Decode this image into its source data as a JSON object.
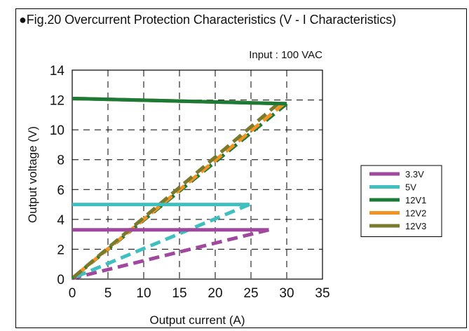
{
  "figure": {
    "title": "●Fig.20 Overcurrent Protection Characteristics (V - I Characteristics)"
  },
  "chart_data": {
    "type": "line",
    "annotation": "Input : 100 VAC",
    "xlabel": "Output current (A)",
    "ylabel": "Output voltage (V)",
    "xlim": [
      0,
      35
    ],
    "ylim": [
      0,
      14
    ],
    "xticks": [
      0,
      5,
      10,
      15,
      20,
      25,
      30,
      35
    ],
    "yticks": [
      0,
      2,
      4,
      6,
      8,
      10,
      12,
      14
    ],
    "grid": "dashed",
    "legend_position": "right",
    "series": [
      {
        "name": "3.3V",
        "color": "#a0479e",
        "regulated": [
          [
            0,
            3.3
          ],
          [
            27.5,
            3.3
          ]
        ],
        "foldback": [
          [
            27.5,
            3.3
          ],
          [
            0,
            0.05
          ]
        ]
      },
      {
        "name": "5V",
        "color": "#3fbfbf",
        "regulated": [
          [
            0,
            5.0
          ],
          [
            24.8,
            5.0
          ]
        ],
        "foldback": [
          [
            24.8,
            5.0
          ],
          [
            0,
            0.05
          ]
        ]
      },
      {
        "name": "12V1",
        "color": "#1a7a36",
        "regulated": [
          [
            0,
            12.1
          ],
          [
            30,
            11.75
          ]
        ],
        "foldback": [
          [
            30,
            11.75
          ],
          [
            0,
            0.05
          ]
        ]
      },
      {
        "name": "12V2",
        "color": "#f39323",
        "regulated": [
          [
            0,
            12.1
          ],
          [
            30,
            11.75
          ]
        ],
        "foldback": [
          [
            29.6,
            11.75
          ],
          [
            0,
            0.05
          ]
        ]
      },
      {
        "name": "12V3",
        "color": "#7a7a2c",
        "regulated": [
          [
            0,
            12.1
          ],
          [
            30,
            11.75
          ]
        ],
        "foldback": [
          [
            28.8,
            11.75
          ],
          [
            0,
            0.05
          ]
        ]
      }
    ]
  }
}
